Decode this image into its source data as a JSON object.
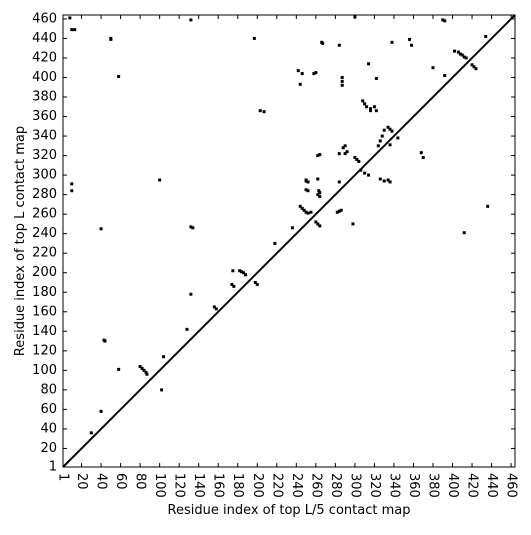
{
  "chart_data": {
    "type": "scatter",
    "xlabel": "Residue index of top L/5 contact map",
    "ylabel": "Residue index of top L contact map",
    "color": "#000000",
    "xlim": [
      1,
      464
    ],
    "ylim": [
      1,
      464
    ],
    "xticks": [
      1,
      20,
      40,
      60,
      80,
      100,
      120,
      140,
      160,
      180,
      200,
      220,
      240,
      260,
      280,
      300,
      320,
      340,
      360,
      380,
      400,
      420,
      440,
      460
    ],
    "yticks": [
      1,
      20,
      40,
      60,
      80,
      100,
      120,
      140,
      160,
      180,
      200,
      220,
      240,
      260,
      280,
      300,
      320,
      340,
      360,
      380,
      400,
      420,
      440,
      460
    ],
    "x": [
      8,
      10,
      13,
      50,
      50,
      58,
      10,
      10,
      40,
      43,
      44,
      58,
      80,
      82,
      84,
      86,
      87,
      132,
      132,
      134,
      197,
      203,
      207,
      242,
      246,
      258,
      260,
      266,
      267,
      284,
      287,
      287,
      287,
      300,
      314,
      322,
      338,
      356,
      358,
      390,
      392,
      402,
      406,
      408,
      410,
      412,
      414,
      420,
      422,
      424,
      250,
      250,
      252,
      250,
      252,
      262,
      263,
      264,
      262,
      264,
      244,
      246,
      248,
      250,
      252,
      255,
      260,
      262,
      264,
      262,
      264,
      284,
      288,
      290,
      290,
      292,
      100,
      104,
      132,
      102,
      128,
      156,
      158,
      174,
      176,
      182,
      184,
      186,
      188,
      198,
      200,
      175,
      284,
      282,
      286,
      284,
      300,
      302,
      304,
      308,
      310,
      312,
      316,
      320,
      316,
      322,
      324,
      326,
      328,
      330,
      334,
      336,
      338,
      336,
      344,
      326,
      330,
      334,
      336,
      306,
      310,
      314,
      368,
      370,
      380,
      392,
      412,
      436,
      434,
      298,
      244,
      40,
      30,
      218,
      236
    ],
    "y": [
      461,
      449,
      449,
      439,
      440,
      401,
      291,
      284,
      245,
      131,
      130,
      101,
      104,
      102,
      100,
      98,
      96,
      459,
      247,
      246,
      440,
      366,
      365,
      407,
      404,
      404,
      405,
      436,
      435,
      433,
      400,
      396,
      392,
      462,
      414,
      399,
      436,
      439,
      433,
      459,
      458,
      427,
      426,
      424,
      423,
      421,
      420,
      413,
      411,
      409,
      295,
      294,
      293,
      285,
      284,
      296,
      284,
      282,
      280,
      278,
      268,
      266,
      264,
      262,
      261,
      262,
      252,
      250,
      248,
      320,
      321,
      322,
      328,
      330,
      322,
      324,
      295,
      114,
      178,
      80,
      142,
      165,
      163,
      188,
      186,
      202,
      201,
      200,
      198,
      190,
      188,
      202,
      263,
      262,
      264,
      293,
      318,
      316,
      314,
      376,
      373,
      370,
      368,
      370,
      366,
      366,
      330,
      335,
      340,
      346,
      349,
      347,
      345,
      331,
      338,
      296,
      294,
      295,
      293,
      305,
      302,
      300,
      323,
      318,
      410,
      402,
      241,
      268,
      442,
      250,
      393,
      58,
      36,
      230,
      246
    ]
  }
}
